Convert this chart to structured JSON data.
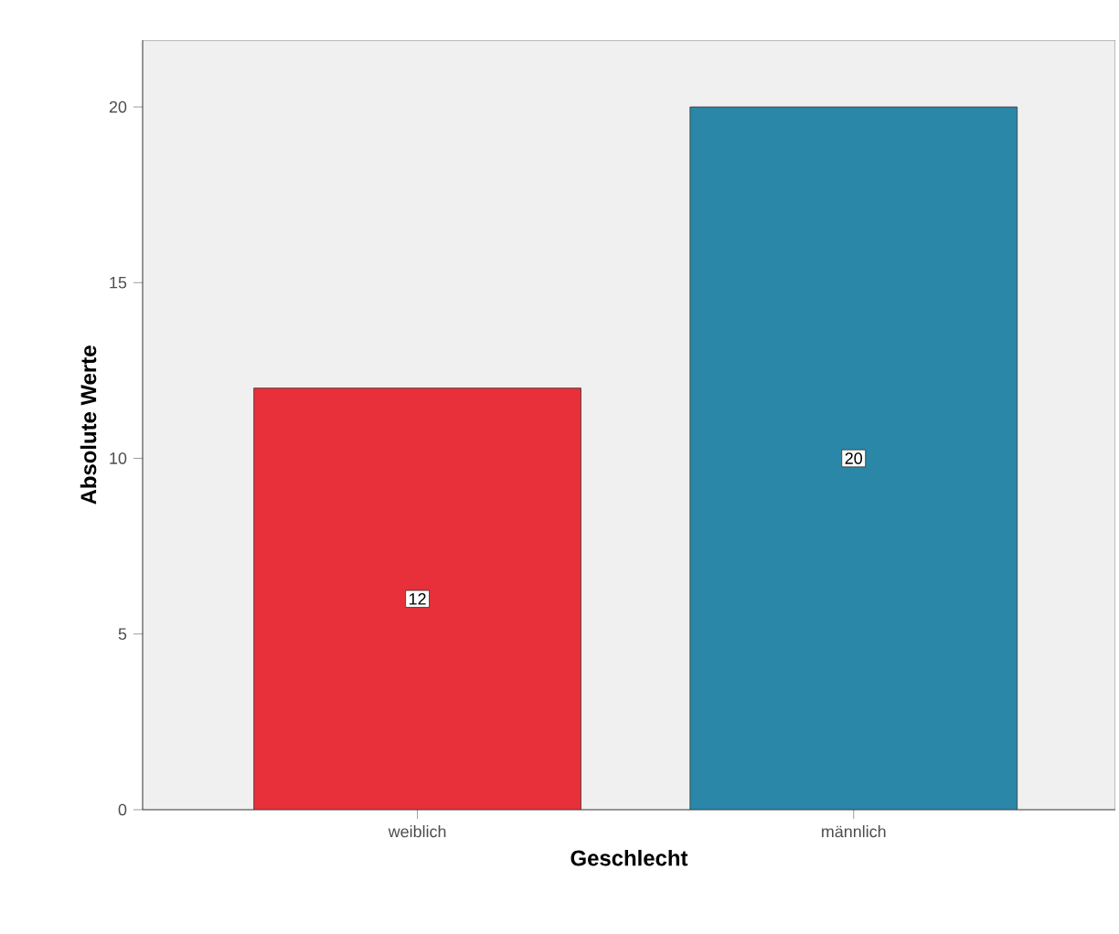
{
  "chart_data": {
    "type": "bar",
    "xlabel": "Geschlecht",
    "ylabel": "Absolute Werte",
    "categories": [
      "weiblich",
      "männlich"
    ],
    "values": [
      12,
      20
    ],
    "colors": [
      "#e8303a",
      "#2a87a8"
    ],
    "ylim": [
      0,
      21.9
    ],
    "yticks": [
      0,
      5,
      10,
      15,
      20
    ],
    "grid": false,
    "data_labels": true
  }
}
